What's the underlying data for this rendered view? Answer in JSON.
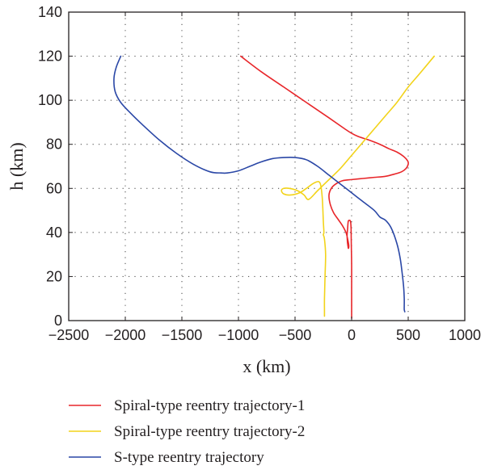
{
  "chart_data": {
    "type": "line",
    "xlabel": "x (km)",
    "ylabel": "h (km)",
    "xlim": [
      -2500,
      1000
    ],
    "ylim": [
      0,
      140
    ],
    "xticks": [
      -2500,
      -2000,
      -1500,
      -1000,
      -500,
      0,
      500,
      1000
    ],
    "yticks": [
      0,
      20,
      40,
      60,
      80,
      100,
      120,
      140
    ],
    "x_tick_labels": [
      "−2500",
      "−2000",
      "−1500",
      "−1000",
      "−500",
      "0",
      "500",
      "1000"
    ],
    "y_tick_labels": [
      "0",
      "20",
      "40",
      "60",
      "80",
      "100",
      "120",
      "140"
    ],
    "grid": true,
    "legend_position": "below plot",
    "series": [
      {
        "name": "Spiral-type reentry trajectory-1",
        "color": "#e8262a",
        "x": [
          -980,
          -800,
          -600,
          -400,
          -200,
          -60,
          0,
          60,
          150,
          250,
          330,
          400,
          460,
          495,
          500,
          480,
          440,
          380,
          300,
          200,
          100,
          0,
          -80,
          -140,
          -180,
          -200,
          -190,
          -160,
          -120,
          -80,
          -50,
          -35,
          -25,
          -30,
          -40,
          -35,
          -30,
          -20,
          -10,
          -5,
          -3,
          0,
          0,
          0,
          0
        ],
        "y": [
          120,
          113,
          106,
          99,
          92,
          87,
          85,
          83.5,
          82,
          80,
          78,
          76.5,
          74.5,
          72.5,
          71,
          69,
          67.5,
          66.5,
          65.5,
          65,
          64.5,
          64,
          63.5,
          62,
          60,
          57,
          53,
          49,
          46,
          43,
          40,
          37,
          34,
          33,
          38,
          42,
          45,
          45.5,
          45,
          42,
          35,
          25,
          15,
          5,
          1
        ]
      },
      {
        "name": "Spiral-type reentry trajectory-2",
        "color": "#f2d31a",
        "x": [
          730,
          600,
          500,
          400,
          300,
          200,
          100,
          0,
          -100,
          -200,
          -300,
          -380,
          -420,
          -480,
          -550,
          -600,
          -620,
          -600,
          -540,
          -460,
          -400,
          -330,
          -280,
          -260,
          -250,
          -245,
          -250,
          -240,
          -230,
          -235,
          -240,
          -240,
          -240
        ],
        "y": [
          120,
          112,
          106,
          99,
          93,
          87,
          81,
          75,
          69,
          64,
          59,
          55,
          57,
          59,
          60,
          60,
          59,
          57.5,
          57,
          58,
          60,
          62.5,
          62.5,
          56,
          45,
          40,
          39,
          37,
          30,
          20,
          10,
          5,
          2
        ]
      },
      {
        "name": "S-type reentry trajectory",
        "color": "#2a47a6",
        "x": [
          -2040,
          -2080,
          -2100,
          -2090,
          -2040,
          -1950,
          -1850,
          -1700,
          -1550,
          -1400,
          -1250,
          -1150,
          -1100,
          -1000,
          -900,
          -800,
          -700,
          -600,
          -500,
          -400,
          -300,
          -200,
          -100,
          0,
          100,
          200,
          250,
          300,
          350,
          400,
          430,
          450,
          460,
          465,
          465,
          465,
          470
        ],
        "y": [
          120,
          115,
          110,
          104,
          99,
          94,
          89,
          82,
          76,
          71,
          67.5,
          67,
          67,
          68,
          70,
          72,
          73.5,
          74,
          74,
          73,
          70,
          66,
          62,
          58,
          54,
          50,
          47,
          45.5,
          42,
          35,
          28,
          20,
          15,
          10,
          7,
          5,
          4
        ]
      }
    ]
  }
}
